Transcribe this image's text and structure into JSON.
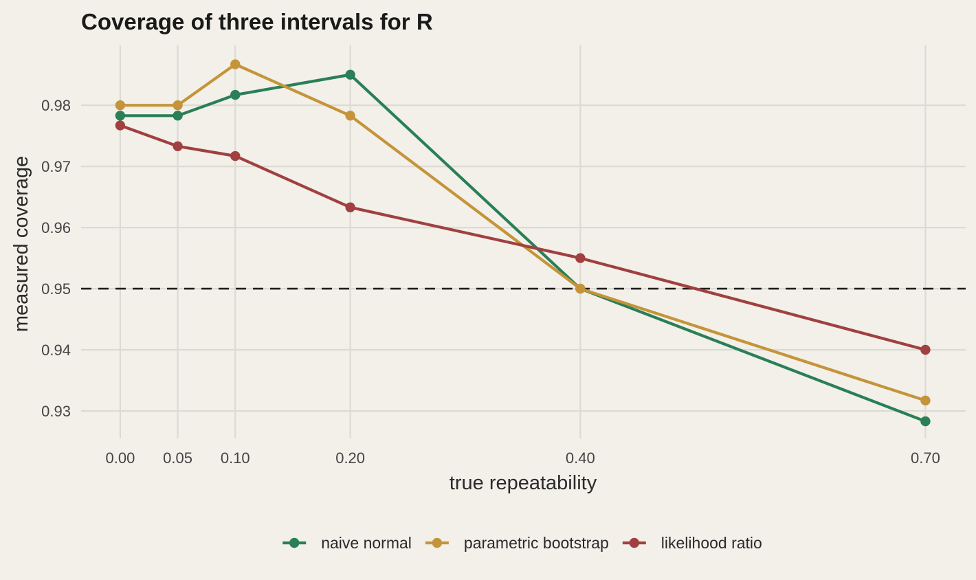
{
  "chart_data": {
    "type": "line",
    "title": "Coverage of three intervals for R",
    "xlabel": "true repeatability",
    "ylabel": "measured coverage",
    "x": [
      0.0,
      0.05,
      0.1,
      0.2,
      0.4,
      0.7
    ],
    "x_tick_labels": [
      "0.00",
      "0.05",
      "0.10",
      "0.20",
      "0.40",
      "0.70"
    ],
    "y_tick_values": [
      0.93,
      0.94,
      0.95,
      0.96,
      0.97,
      0.98
    ],
    "y_tick_labels": [
      "0.93",
      "0.94",
      "0.95",
      "0.96",
      "0.97",
      "0.98"
    ],
    "xlim": [
      -0.034,
      0.735
    ],
    "ylim": [
      0.9255,
      0.9898
    ],
    "reference_line": {
      "y": 0.95,
      "style": "dashed"
    },
    "grid": true,
    "legend_position": "bottom",
    "series": [
      {
        "name": "naive normal",
        "color": "#2a7f57",
        "values": [
          0.9783,
          0.9783,
          0.9817,
          0.985,
          0.95,
          0.9283
        ]
      },
      {
        "name": "parametric bootstrap",
        "color": "#c5943a",
        "values": [
          0.98,
          0.98,
          0.9867,
          0.9783,
          0.95,
          0.9317
        ]
      },
      {
        "name": "likelihood ratio",
        "color": "#a04040",
        "values": [
          0.9767,
          0.9733,
          0.9717,
          0.9633,
          0.955,
          0.94
        ]
      }
    ]
  }
}
